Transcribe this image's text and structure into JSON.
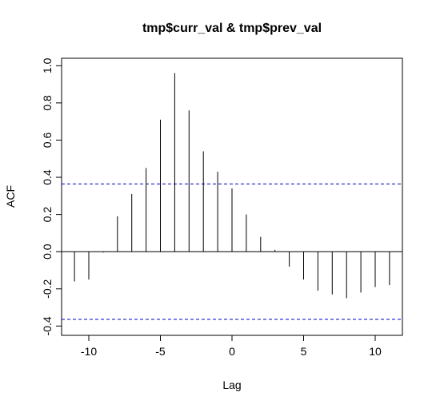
{
  "chart_data": {
    "type": "ccf",
    "title": "tmp$curr_val & tmp$prev_val",
    "xlabel": "Lag",
    "ylabel": "ACF",
    "x": [
      -11,
      -10,
      -9,
      -8,
      -7,
      -6,
      -5,
      -4,
      -3,
      -2,
      -1,
      0,
      1,
      2,
      3,
      4,
      5,
      6,
      7,
      8,
      9,
      10,
      11
    ],
    "values": [
      -0.16,
      -0.15,
      -0.005,
      0.19,
      0.31,
      0.45,
      0.71,
      0.96,
      0.76,
      0.54,
      0.43,
      0.34,
      0.2,
      0.08,
      0.01,
      -0.08,
      -0.15,
      -0.21,
      -0.23,
      -0.25,
      -0.22,
      -0.19,
      -0.18
    ],
    "color": "#000000",
    "confidence": [
      0.364,
      -0.364
    ],
    "confidence_color": "#0000cc",
    "xlim": [
      -11.9,
      11.9
    ],
    "ylim": [
      -0.45,
      1.04
    ],
    "xticks": [
      -10,
      -5,
      0,
      5,
      10
    ],
    "yticks": [
      {
        "value": -0.4,
        "label": "-0.4"
      },
      -0.2,
      {
        "value": 0,
        "label": "0.0"
      },
      0.2,
      0.4,
      0.6,
      0.8,
      {
        "value": 1,
        "label": "1.0"
      }
    ]
  }
}
